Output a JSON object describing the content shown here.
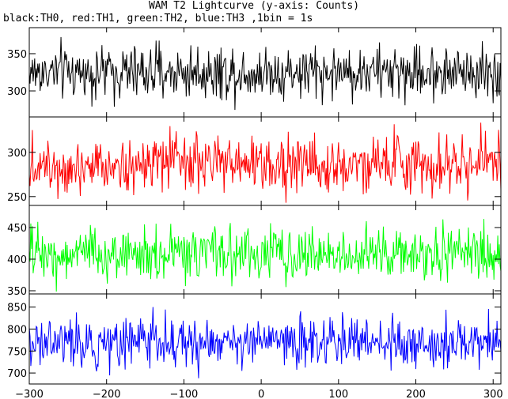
{
  "title": "WAM T2 Lightcurve (y-axis: Counts)",
  "subtitle": "black:TH0, red:TH1, green:TH2, blue:TH3 ,1bin = 1s",
  "chart_data": {
    "type": "line",
    "xlim": [
      -300,
      310
    ],
    "x_ticks": [
      -300,
      -200,
      -100,
      0,
      100,
      200,
      300
    ],
    "bin_seconds": 1,
    "panels": [
      {
        "series": "TH0",
        "color": "#000000",
        "ylim": [
          265,
          385
        ],
        "y_ticks": [
          300,
          350
        ],
        "mean": 325,
        "noise": 18
      },
      {
        "series": "TH1",
        "color": "#ff0000",
        "ylim": [
          240,
          340
        ],
        "y_ticks": [
          250,
          300
        ],
        "mean": 287,
        "noise": 16
      },
      {
        "series": "TH2",
        "color": "#00ff00",
        "ylim": [
          345,
          485
        ],
        "y_ticks": [
          350,
          400,
          450
        ],
        "mean": 408,
        "noise": 21
      },
      {
        "series": "TH3",
        "color": "#0000ff",
        "ylim": [
          675,
          880
        ],
        "y_ticks": [
          700,
          750,
          800,
          850
        ],
        "mean": 770,
        "noise": 28
      }
    ]
  }
}
